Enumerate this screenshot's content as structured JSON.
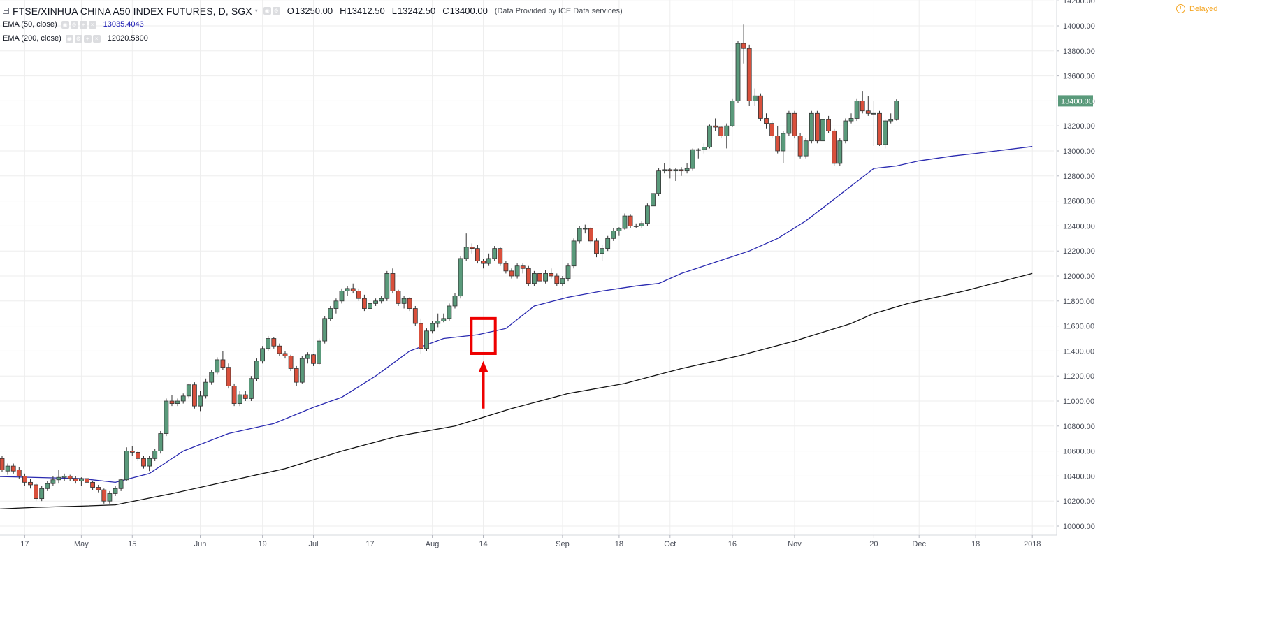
{
  "legend": {
    "symbol_title": "FTSE/XINHUA CHINA A50 INDEX FUTURES, D, SGX",
    "ohlc": {
      "o_label": "O",
      "o_value": "13250.00",
      "h_label": "H",
      "h_value": "13412.50",
      "l_label": "L",
      "l_value": "13242.50",
      "c_label": "C",
      "c_value": "13400.00"
    },
    "provider": "(Data Provided by ICE Data services)",
    "ema50": {
      "label": "EMA (50, close)",
      "value": "13035.4043"
    },
    "ema200": {
      "label": "EMA (200, close)",
      "value": "12020.5800"
    }
  },
  "status": {
    "delayed": "Delayed"
  },
  "last_price_tag": "13400.00",
  "colors": {
    "up": "#5a9a7b",
    "down": "#d9503c",
    "ema50": "#2a2ab0",
    "ema200": "#111111",
    "annotation": "#ee0000",
    "grid": "#eeeeee",
    "price_tag_bg": "#5a9a7b"
  },
  "icons": [
    "collapse-icon",
    "eye-icon",
    "settings-icon",
    "close-icon",
    "info-icon"
  ],
  "chart_data": {
    "type": "candlestick",
    "title": "FTSE/XINHUA CHINA A50 INDEX FUTURES, D, SGX",
    "timeframe": "D",
    "ylim": [
      9920,
      14200
    ],
    "y_ticks": [
      "10000.00",
      "10200.00",
      "10400.00",
      "10600.00",
      "10800.00",
      "11000.00",
      "11200.00",
      "11400.00",
      "11600.00",
      "11800.00",
      "12000.00",
      "12200.00",
      "12400.00",
      "12600.00",
      "12800.00",
      "13000.00",
      "13200.00",
      "13400.00",
      "13600.00",
      "13800.00",
      "14000.00",
      "14200.00"
    ],
    "x_ticks": [
      {
        "label": "17",
        "bar": 4
      },
      {
        "label": "May",
        "bar": 14
      },
      {
        "label": "15",
        "bar": 23
      },
      {
        "label": "Jun",
        "bar": 35
      },
      {
        "label": "19",
        "bar": 46
      },
      {
        "label": "Jul",
        "bar": 55
      },
      {
        "label": "17",
        "bar": 65
      },
      {
        "label": "Aug",
        "bar": 76
      },
      {
        "label": "14",
        "bar": 85
      },
      {
        "label": "Sep",
        "bar": 99
      },
      {
        "label": "18",
        "bar": 109
      },
      {
        "label": "Oct",
        "bar": 118
      },
      {
        "label": "16",
        "bar": 129
      },
      {
        "label": "Nov",
        "bar": 140
      },
      {
        "label": "20",
        "bar": 154
      },
      {
        "label": "Dec",
        "bar": 162
      },
      {
        "label": "18",
        "bar": 172
      },
      {
        "label": "2018",
        "bar": 182
      }
    ],
    "ohlc": [
      [
        10540,
        10560,
        10430,
        10450
      ],
      [
        10440,
        10500,
        10410,
        10480
      ],
      [
        10480,
        10500,
        10420,
        10440
      ],
      [
        10450,
        10470,
        10380,
        10400
      ],
      [
        10400,
        10420,
        10320,
        10350
      ],
      [
        10350,
        10380,
        10300,
        10330
      ],
      [
        10330,
        10340,
        10200,
        10220
      ],
      [
        10220,
        10320,
        10200,
        10300
      ],
      [
        10300,
        10360,
        10280,
        10340
      ],
      [
        10340,
        10400,
        10320,
        10370
      ],
      [
        10370,
        10450,
        10340,
        10390
      ],
      [
        10390,
        10420,
        10360,
        10400
      ],
      [
        10400,
        10410,
        10360,
        10380
      ],
      [
        10380,
        10400,
        10340,
        10360
      ],
      [
        10360,
        10390,
        10320,
        10380
      ],
      [
        10380,
        10400,
        10330,
        10350
      ],
      [
        10350,
        10360,
        10290,
        10310
      ],
      [
        10310,
        10330,
        10270,
        10290
      ],
      [
        10290,
        10300,
        10180,
        10200
      ],
      [
        10200,
        10280,
        10180,
        10260
      ],
      [
        10260,
        10320,
        10240,
        10300
      ],
      [
        10300,
        10380,
        10280,
        10370
      ],
      [
        10370,
        10630,
        10360,
        10600
      ],
      [
        10600,
        10640,
        10560,
        10590
      ],
      [
        10590,
        10600,
        10520,
        10540
      ],
      [
        10540,
        10560,
        10460,
        10480
      ],
      [
        10480,
        10560,
        10440,
        10540
      ],
      [
        10540,
        10620,
        10520,
        10600
      ],
      [
        10600,
        10760,
        10580,
        10740
      ],
      [
        10740,
        11020,
        10720,
        11000
      ],
      [
        11000,
        11050,
        10960,
        10980
      ],
      [
        10980,
        11020,
        10960,
        11000
      ],
      [
        11000,
        11060,
        10980,
        11040
      ],
      [
        11040,
        11140,
        11020,
        11130
      ],
      [
        11130,
        11150,
        10940,
        10960
      ],
      [
        10960,
        11080,
        10920,
        11040
      ],
      [
        11040,
        11180,
        11020,
        11150
      ],
      [
        11150,
        11250,
        11130,
        11230
      ],
      [
        11230,
        11350,
        11210,
        11330
      ],
      [
        11330,
        11400,
        11250,
        11270
      ],
      [
        11270,
        11300,
        11100,
        11120
      ],
      [
        11120,
        11140,
        10960,
        10980
      ],
      [
        10980,
        11080,
        10960,
        11050
      ],
      [
        11050,
        11080,
        11000,
        11020
      ],
      [
        11020,
        11200,
        11000,
        11180
      ],
      [
        11180,
        11340,
        11160,
        11320
      ],
      [
        11320,
        11440,
        11300,
        11420
      ],
      [
        11420,
        11520,
        11400,
        11500
      ],
      [
        11500,
        11510,
        11420,
        11440
      ],
      [
        11440,
        11460,
        11360,
        11380
      ],
      [
        11380,
        11400,
        11340,
        11360
      ],
      [
        11360,
        11370,
        11240,
        11260
      ],
      [
        11260,
        11280,
        11120,
        11150
      ],
      [
        11150,
        11360,
        11140,
        11340
      ],
      [
        11340,
        11390,
        11300,
        11370
      ],
      [
        11370,
        11380,
        11280,
        11300
      ],
      [
        11300,
        11500,
        11290,
        11480
      ],
      [
        11480,
        11680,
        11460,
        11660
      ],
      [
        11660,
        11760,
        11640,
        11740
      ],
      [
        11740,
        11820,
        11700,
        11800
      ],
      [
        11800,
        11900,
        11780,
        11880
      ],
      [
        11880,
        11920,
        11840,
        11900
      ],
      [
        11900,
        11940,
        11860,
        11880
      ],
      [
        11880,
        11900,
        11800,
        11820
      ],
      [
        11820,
        11850,
        11720,
        11740
      ],
      [
        11740,
        11800,
        11720,
        11780
      ],
      [
        11780,
        11820,
        11760,
        11800
      ],
      [
        11800,
        11840,
        11780,
        11820
      ],
      [
        11820,
        12040,
        11800,
        12020
      ],
      [
        12020,
        12060,
        11860,
        11880
      ],
      [
        11880,
        11890,
        11760,
        11780
      ],
      [
        11780,
        11840,
        11740,
        11820
      ],
      [
        11820,
        11830,
        11720,
        11740
      ],
      [
        11740,
        11760,
        11600,
        11620
      ],
      [
        11620,
        11660,
        11380,
        11420
      ],
      [
        11420,
        11580,
        11400,
        11560
      ],
      [
        11560,
        11640,
        11540,
        11620
      ],
      [
        11620,
        11700,
        11590,
        11640
      ],
      [
        11640,
        11700,
        11630,
        11660
      ],
      [
        11660,
        11780,
        11640,
        11760
      ],
      [
        11760,
        11860,
        11740,
        11840
      ],
      [
        11840,
        12160,
        11820,
        12140
      ],
      [
        12140,
        12340,
        12120,
        12230
      ],
      [
        12230,
        12260,
        12180,
        12220
      ],
      [
        12220,
        12250,
        12100,
        12120
      ],
      [
        12120,
        12140,
        12060,
        12100
      ],
      [
        12100,
        12180,
        12080,
        12140
      ],
      [
        12140,
        12240,
        12120,
        12220
      ],
      [
        12220,
        12230,
        12080,
        12100
      ],
      [
        12100,
        12120,
        12020,
        12040
      ],
      [
        12040,
        12060,
        11980,
        12000
      ],
      [
        12000,
        12100,
        11980,
        12080
      ],
      [
        12080,
        12100,
        12020,
        12060
      ],
      [
        12060,
        12080,
        11920,
        11940
      ],
      [
        11940,
        12040,
        11920,
        12020
      ],
      [
        12020,
        12040,
        11940,
        11960
      ],
      [
        11960,
        12050,
        11940,
        12020
      ],
      [
        12020,
        12060,
        11980,
        12000
      ],
      [
        12000,
        12020,
        11920,
        11940
      ],
      [
        11940,
        12000,
        11920,
        11980
      ],
      [
        11980,
        12100,
        11960,
        12080
      ],
      [
        12080,
        12300,
        12060,
        12280
      ],
      [
        12280,
        12400,
        12260,
        12380
      ],
      [
        12380,
        12410,
        12340,
        12380
      ],
      [
        12380,
        12390,
        12260,
        12280
      ],
      [
        12280,
        12300,
        12150,
        12180
      ],
      [
        12180,
        12250,
        12120,
        12220
      ],
      [
        12220,
        12320,
        12200,
        12300
      ],
      [
        12300,
        12380,
        12280,
        12360
      ],
      [
        12360,
        12390,
        12320,
        12380
      ],
      [
        12380,
        12500,
        12370,
        12480
      ],
      [
        12480,
        12490,
        12380,
        12400
      ],
      [
        12400,
        12420,
        12380,
        12400
      ],
      [
        12400,
        12440,
        12380,
        12420
      ],
      [
        12420,
        12580,
        12400,
        12560
      ],
      [
        12560,
        12680,
        12540,
        12660
      ],
      [
        12660,
        12860,
        12640,
        12840
      ],
      [
        12840,
        12900,
        12820,
        12850
      ],
      [
        12850,
        12860,
        12780,
        12840
      ],
      [
        12840,
        12860,
        12760,
        12850
      ],
      [
        12850,
        12870,
        12800,
        12840
      ],
      [
        12840,
        12900,
        12820,
        12860
      ],
      [
        12860,
        13020,
        12840,
        13010
      ],
      [
        13010,
        13020,
        12940,
        13010
      ],
      [
        13010,
        13060,
        12980,
        13030
      ],
      [
        13030,
        13210,
        13020,
        13200
      ],
      [
        13200,
        13260,
        13160,
        13190
      ],
      [
        13190,
        13200,
        13100,
        13120
      ],
      [
        13120,
        13220,
        13020,
        13200
      ],
      [
        13200,
        13420,
        13190,
        13400
      ],
      [
        13400,
        13880,
        13380,
        13860
      ],
      [
        13860,
        14010,
        13700,
        13820
      ],
      [
        13820,
        13850,
        13360,
        13400
      ],
      [
        13400,
        13500,
        13360,
        13440
      ],
      [
        13440,
        13460,
        13240,
        13260
      ],
      [
        13260,
        13300,
        13180,
        13220
      ],
      [
        13220,
        13240,
        13100,
        13120
      ],
      [
        13120,
        13200,
        12980,
        13000
      ],
      [
        13000,
        13160,
        12900,
        13140
      ],
      [
        13140,
        13320,
        13120,
        13300
      ],
      [
        13300,
        13320,
        13100,
        13120
      ],
      [
        13120,
        13140,
        12940,
        12960
      ],
      [
        12960,
        13100,
        12940,
        13080
      ],
      [
        13080,
        13320,
        13060,
        13300
      ],
      [
        13300,
        13320,
        13060,
        13080
      ],
      [
        13080,
        13280,
        13060,
        13250
      ],
      [
        13250,
        13280,
        13140,
        13160
      ],
      [
        13160,
        13180,
        12880,
        12900
      ],
      [
        12900,
        13100,
        12880,
        13080
      ],
      [
        13080,
        13260,
        13060,
        13240
      ],
      [
        13240,
        13300,
        13220,
        13260
      ],
      [
        13260,
        13420,
        13240,
        13400
      ],
      [
        13400,
        13480,
        13300,
        13320
      ],
      [
        13320,
        13440,
        13280,
        13300
      ],
      [
        13300,
        13400,
        13040,
        13300
      ],
      [
        13300,
        13320,
        13040,
        13050
      ],
      [
        13050,
        13250,
        13020,
        13240
      ],
      [
        13240,
        13300,
        13220,
        13250
      ],
      [
        13250,
        13412.5,
        13242.5,
        13400
      ]
    ],
    "ema50": [
      [
        -4,
        10400
      ],
      [
        14,
        10380
      ],
      [
        20,
        10350
      ],
      [
        26,
        10420
      ],
      [
        32,
        10600
      ],
      [
        40,
        10740
      ],
      [
        48,
        10820
      ],
      [
        55,
        10950
      ],
      [
        60,
        11030
      ],
      [
        66,
        11200
      ],
      [
        72,
        11400
      ],
      [
        78,
        11500
      ],
      [
        84,
        11530
      ],
      [
        89,
        11580
      ],
      [
        94,
        11760
      ],
      [
        100,
        11830
      ],
      [
        106,
        11880
      ],
      [
        112,
        11920
      ],
      [
        116,
        11940
      ],
      [
        120,
        12020
      ],
      [
        126,
        12110
      ],
      [
        132,
        12200
      ],
      [
        137,
        12300
      ],
      [
        142,
        12440
      ],
      [
        146,
        12580
      ],
      [
        150,
        12720
      ],
      [
        154,
        12860
      ],
      [
        158,
        12880
      ],
      [
        162,
        12920
      ],
      [
        168,
        12960
      ],
      [
        172,
        12980
      ],
      [
        182,
        13035
      ]
    ],
    "ema200": [
      [
        -4,
        10130
      ],
      [
        6,
        10150
      ],
      [
        14,
        10160
      ],
      [
        20,
        10170
      ],
      [
        30,
        10260
      ],
      [
        40,
        10360
      ],
      [
        50,
        10460
      ],
      [
        60,
        10600
      ],
      [
        70,
        10720
      ],
      [
        80,
        10800
      ],
      [
        90,
        10940
      ],
      [
        100,
        11060
      ],
      [
        110,
        11140
      ],
      [
        120,
        11260
      ],
      [
        130,
        11360
      ],
      [
        140,
        11480
      ],
      [
        150,
        11620
      ],
      [
        154,
        11700
      ],
      [
        160,
        11780
      ],
      [
        170,
        11880
      ],
      [
        182,
        12020
      ]
    ],
    "annotations": [
      {
        "type": "rectangle",
        "bars": [
          83,
          87
        ],
        "price_range": [
          11380,
          11660
        ]
      },
      {
        "type": "arrow-up",
        "bar": 85,
        "from_price": 10940,
        "to_price": 11320
      }
    ]
  }
}
